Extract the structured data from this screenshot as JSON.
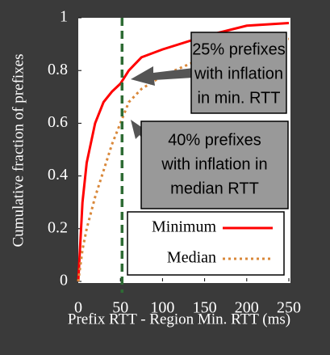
{
  "chart_data": {
    "type": "line",
    "xlabel": "Prefix RTT - Region Min. RTT (ms)",
    "ylabel": "Cumulative fraction of prefixes",
    "x": [
      0,
      5,
      10,
      20,
      30,
      40,
      50,
      60,
      75,
      100,
      150,
      200,
      250
    ],
    "series": [
      {
        "name": "Minimum",
        "color": "#ff0000",
        "style": "solid",
        "values": [
          0,
          0.3,
          0.45,
          0.6,
          0.68,
          0.72,
          0.75,
          0.8,
          0.85,
          0.88,
          0.93,
          0.97,
          0.98
        ]
      },
      {
        "name": "Median",
        "color": "#d9883a",
        "style": "dotted",
        "values": [
          0,
          0.12,
          0.2,
          0.32,
          0.42,
          0.52,
          0.6,
          0.68,
          0.73,
          0.78,
          0.85,
          0.9,
          0.92
        ]
      }
    ],
    "xlim": [
      0,
      250
    ],
    "xticks": [
      0,
      50,
      100,
      150,
      200,
      250
    ],
    "ylim": [
      0,
      1
    ],
    "yticks": [
      0,
      0.2,
      0.4,
      0.6,
      0.8,
      1
    ],
    "vline": {
      "x": 52,
      "color": "#2e6b34"
    },
    "legend": "lower right",
    "annotations": [
      {
        "lines": [
          "25% prefixes",
          "with inflation",
          "in min. RTT"
        ]
      },
      {
        "lines": [
          "40% prefixes",
          "with inflation in",
          "median RTT"
        ]
      }
    ]
  }
}
